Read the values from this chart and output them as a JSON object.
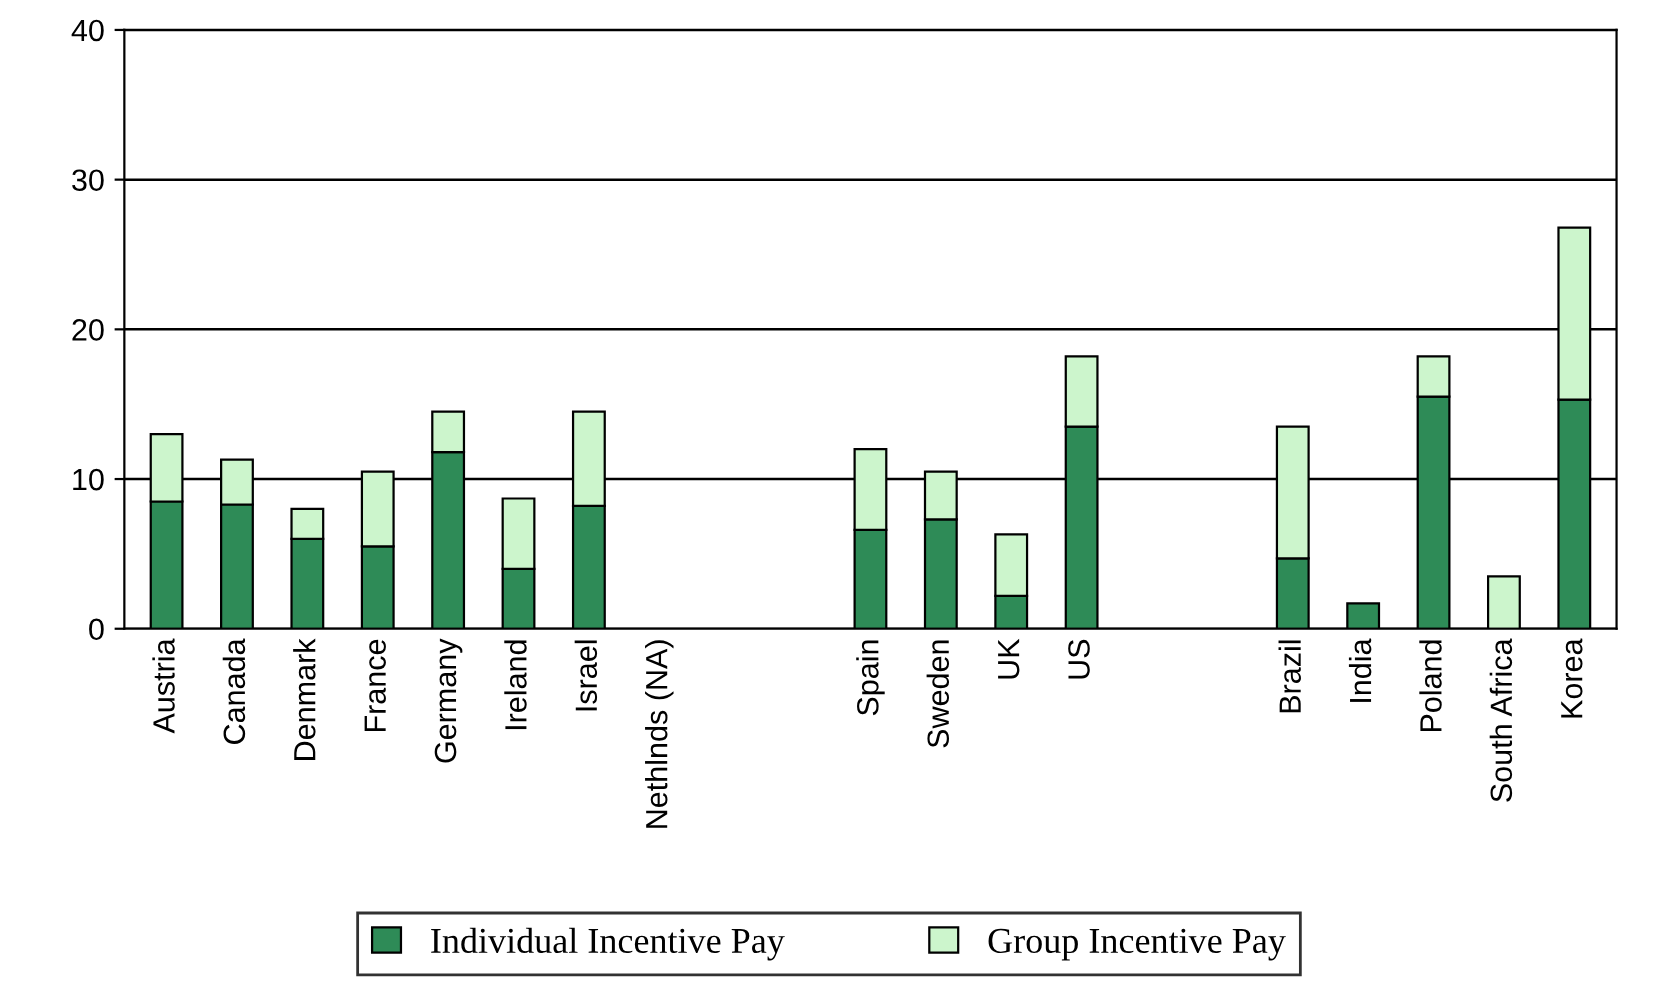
{
  "chart_data": {
    "type": "bar",
    "stacked": true,
    "categories": [
      "Austria",
      "Canada",
      "Denmark",
      "France",
      "Germany",
      "Ireland",
      "Israel",
      "Nethlnds (NA)",
      null,
      null,
      "Spain",
      "Sweden",
      "UK",
      "US",
      null,
      null,
      "Brazil",
      "India",
      "Poland",
      "South Africa",
      "Korea"
    ],
    "series": [
      {
        "name": "Individual Incentive Pay",
        "color": "#2e8b57",
        "values": [
          8.5,
          8.3,
          6.0,
          5.5,
          11.8,
          4.0,
          8.2,
          null,
          null,
          null,
          6.6,
          7.3,
          2.2,
          13.5,
          null,
          null,
          4.7,
          1.7,
          15.5,
          0,
          15.3
        ]
      },
      {
        "name": "Group Incentive Pay",
        "color": "#ccf5cc",
        "values": [
          4.5,
          3.0,
          2.0,
          5.0,
          2.7,
          4.7,
          6.3,
          null,
          null,
          null,
          5.4,
          3.2,
          4.1,
          4.7,
          null,
          null,
          8.8,
          0,
          2.7,
          3.5,
          11.5
        ]
      }
    ],
    "ylim": [
      0,
      40
    ],
    "yticks": [
      0,
      10,
      20,
      30,
      40
    ],
    "grid": "y",
    "legend": "bottom"
  }
}
